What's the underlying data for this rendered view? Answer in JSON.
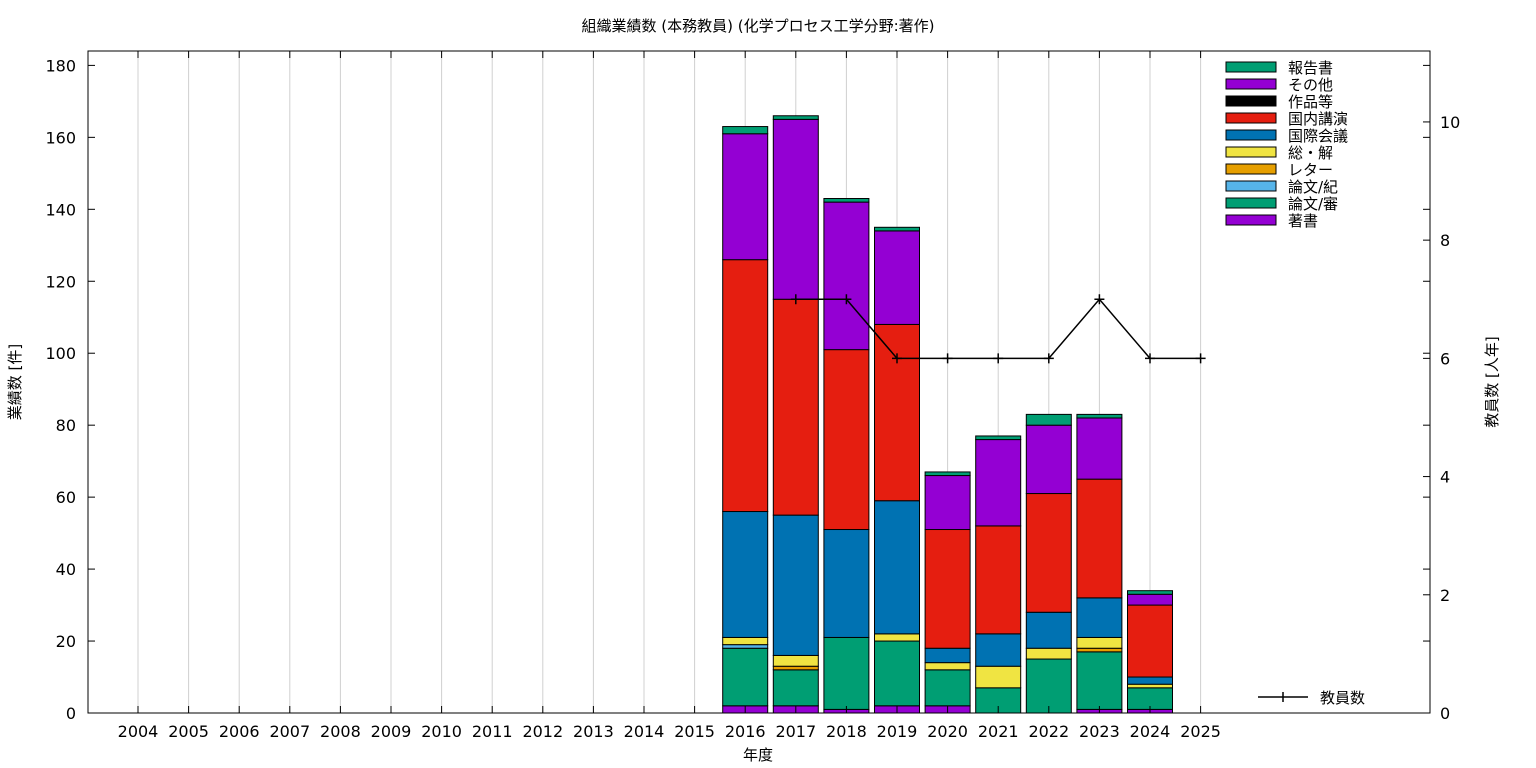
{
  "chart_data": {
    "type": "bar",
    "stacked": true,
    "title": "組織業績数 (本務教員) (化学プロセス工学分野:著作)",
    "xlabel": "年度",
    "ylabel": "業績数 [件]",
    "y2label": "教員数 [人年]",
    "ylim": [
      0,
      184
    ],
    "y_ticks": [
      0,
      20,
      40,
      60,
      80,
      100,
      120,
      140,
      160,
      180
    ],
    "y2lim": [
      0,
      11.2
    ],
    "y2_ticks": [
      0,
      2,
      4,
      6,
      8,
      10
    ],
    "categories": [
      "2004",
      "2005",
      "2006",
      "2007",
      "2008",
      "2009",
      "2010",
      "2011",
      "2012",
      "2013",
      "2014",
      "2015",
      "2016",
      "2017",
      "2018",
      "2019",
      "2020",
      "2021",
      "2022",
      "2023",
      "2024",
      "2025"
    ],
    "legend_position": "top-right",
    "series": [
      {
        "name": "著書",
        "color": "#9400d3",
        "values": [
          0,
          0,
          0,
          0,
          0,
          0,
          0,
          0,
          0,
          0,
          0,
          0,
          2,
          2,
          1,
          2,
          2,
          0,
          0,
          1,
          1,
          0
        ]
      },
      {
        "name": "論文/審",
        "color": "#009e73",
        "values": [
          0,
          0,
          0,
          0,
          0,
          0,
          0,
          0,
          0,
          0,
          0,
          0,
          16,
          10,
          20,
          18,
          10,
          7,
          15,
          16,
          6,
          0
        ]
      },
      {
        "name": "論文/紀",
        "color": "#56b4e9",
        "values": [
          0,
          0,
          0,
          0,
          0,
          0,
          0,
          0,
          0,
          0,
          0,
          0,
          1,
          0,
          0,
          0,
          0,
          0,
          0,
          0,
          0,
          0
        ]
      },
      {
        "name": "レター",
        "color": "#e69f00",
        "values": [
          0,
          0,
          0,
          0,
          0,
          0,
          0,
          0,
          0,
          0,
          0,
          0,
          0,
          1,
          0,
          0,
          0,
          0,
          0,
          1,
          0,
          0
        ]
      },
      {
        "name": "総・解",
        "color": "#f0e442",
        "values": [
          0,
          0,
          0,
          0,
          0,
          0,
          0,
          0,
          0,
          0,
          0,
          0,
          2,
          3,
          0,
          2,
          2,
          6,
          3,
          3,
          1,
          0
        ]
      },
      {
        "name": "国際会議",
        "color": "#0072b2",
        "values": [
          0,
          0,
          0,
          0,
          0,
          0,
          0,
          0,
          0,
          0,
          0,
          0,
          35,
          39,
          30,
          37,
          4,
          9,
          10,
          11,
          2,
          0
        ]
      },
      {
        "name": "国内講演",
        "color": "#e51e10",
        "values": [
          0,
          0,
          0,
          0,
          0,
          0,
          0,
          0,
          0,
          0,
          0,
          0,
          70,
          60,
          50,
          49,
          33,
          30,
          33,
          33,
          20,
          0
        ]
      },
      {
        "name": "作品等",
        "color": "#000000",
        "values": [
          0,
          0,
          0,
          0,
          0,
          0,
          0,
          0,
          0,
          0,
          0,
          0,
          0,
          0,
          0,
          0,
          0,
          0,
          0,
          0,
          0,
          0
        ]
      },
      {
        "name": "その他",
        "color": "#9400d3",
        "values": [
          0,
          0,
          0,
          0,
          0,
          0,
          0,
          0,
          0,
          0,
          0,
          0,
          35,
          50,
          41,
          26,
          15,
          24,
          19,
          17,
          3,
          0
        ]
      },
      {
        "name": "報告書",
        "color": "#009e73",
        "values": [
          0,
          0,
          0,
          0,
          0,
          0,
          0,
          0,
          0,
          0,
          0,
          0,
          2,
          1,
          1,
          1,
          1,
          1,
          3,
          1,
          1,
          0
        ]
      }
    ],
    "line_series": {
      "name": "教員数",
      "color": "#000000",
      "x": [
        "2017",
        "2018",
        "2019",
        "2020",
        "2021",
        "2022",
        "2023",
        "2024",
        "2025"
      ],
      "values": [
        7,
        7,
        6,
        6,
        6,
        6,
        7,
        6,
        6
      ]
    }
  }
}
